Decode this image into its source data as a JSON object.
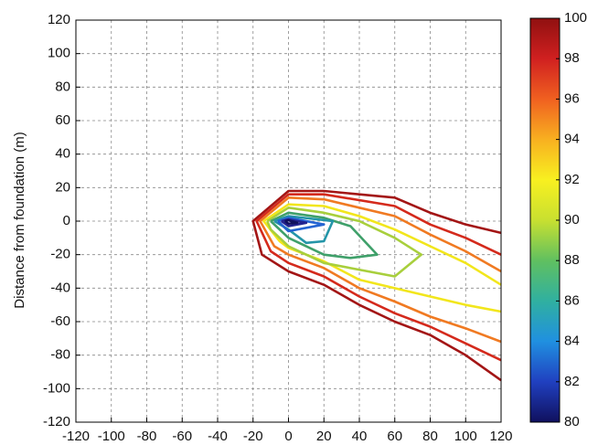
{
  "chart_data": {
    "type": "contour",
    "y_label": "Distance from foundation (m)",
    "xlim": [
      -120,
      120
    ],
    "ylim": [
      -120,
      120
    ],
    "xticks": [
      -120,
      -100,
      -80,
      -60,
      -40,
      -20,
      0,
      20,
      40,
      60,
      80,
      100,
      120
    ],
    "yticks": [
      -120,
      -100,
      -80,
      -60,
      -40,
      -20,
      0,
      20,
      40,
      60,
      80,
      100,
      120
    ],
    "grid": true,
    "series": [
      {
        "color": "#a31515",
        "x": [
          120,
          100,
          80,
          60,
          20,
          0,
          -20,
          -15,
          0,
          20,
          40,
          60,
          80,
          100,
          120
        ],
        "y": [
          -7,
          -2,
          5,
          14,
          18,
          18,
          0,
          -20,
          -30,
          -38,
          -50,
          -60,
          -68,
          -80,
          -95
        ]
      },
      {
        "color": "#d42a1c",
        "x": [
          120,
          100,
          80,
          60,
          20,
          0,
          -18,
          -10,
          0,
          20,
          40,
          60,
          80,
          100,
          120
        ],
        "y": [
          -20,
          -10,
          -2,
          9,
          16,
          16,
          0,
          -18,
          -25,
          -33,
          -45,
          -55,
          -63,
          -73,
          -83
        ]
      },
      {
        "color": "#f07a22",
        "x": [
          120,
          100,
          80,
          60,
          20,
          0,
          -16,
          -8,
          0,
          20,
          40,
          60,
          80,
          100,
          120
        ],
        "y": [
          -30,
          -18,
          -8,
          3,
          13,
          14,
          0,
          -15,
          -20,
          -28,
          -40,
          -48,
          -57,
          -64,
          -72
        ]
      },
      {
        "color": "#f2e61c",
        "x": [
          120,
          100,
          80,
          60,
          40,
          20,
          0,
          -14,
          -5,
          0,
          20,
          40,
          60,
          80,
          100,
          120
        ],
        "y": [
          -38,
          -25,
          -15,
          -5,
          3,
          9,
          10,
          0,
          -12,
          -16,
          -24,
          -35,
          -40,
          -45,
          -50,
          -54
        ]
      },
      {
        "color": "#a8cf3c",
        "x": [
          -12,
          0,
          20,
          40,
          60,
          75,
          60,
          20,
          0,
          -10,
          -12
        ],
        "y": [
          0,
          8,
          5,
          0,
          -10,
          -20,
          -33,
          -25,
          -15,
          -5,
          0
        ]
      },
      {
        "color": "#3fa06a",
        "x": [
          -10,
          0,
          20,
          35,
          50,
          35,
          20,
          0,
          -10
        ],
        "y": [
          0,
          5,
          2,
          -3,
          -20,
          -22,
          -20,
          -10,
          0
        ]
      },
      {
        "color": "#2495a8",
        "x": [
          -8,
          0,
          25,
          20,
          10,
          0,
          -8
        ],
        "y": [
          0,
          3,
          0,
          -12,
          -13,
          -5,
          0
        ]
      },
      {
        "color": "#2464d2",
        "x": [
          -6,
          0,
          20,
          0,
          -6
        ],
        "y": [
          0,
          2,
          -2,
          -6,
          0
        ]
      },
      {
        "color": "#23238f",
        "x": [
          -4,
          0,
          10,
          0,
          -4
        ],
        "y": [
          0,
          1,
          -1,
          -3,
          0
        ]
      },
      {
        "color": "#10105e",
        "x": [
          -2,
          0,
          5,
          0,
          -2
        ],
        "y": [
          0,
          0.5,
          -1,
          -1.5,
          0
        ]
      }
    ],
    "colorbar": {
      "lim": [
        80,
        100
      ],
      "ticks": [
        80,
        82,
        84,
        86,
        88,
        90,
        92,
        94,
        96,
        98,
        100
      ],
      "colors": [
        "#10105e",
        "#2040c0",
        "#2090e0",
        "#30b0a0",
        "#60c060",
        "#c8e030",
        "#f8f020",
        "#f8b020",
        "#f06020",
        "#d02020",
        "#901010"
      ]
    }
  }
}
